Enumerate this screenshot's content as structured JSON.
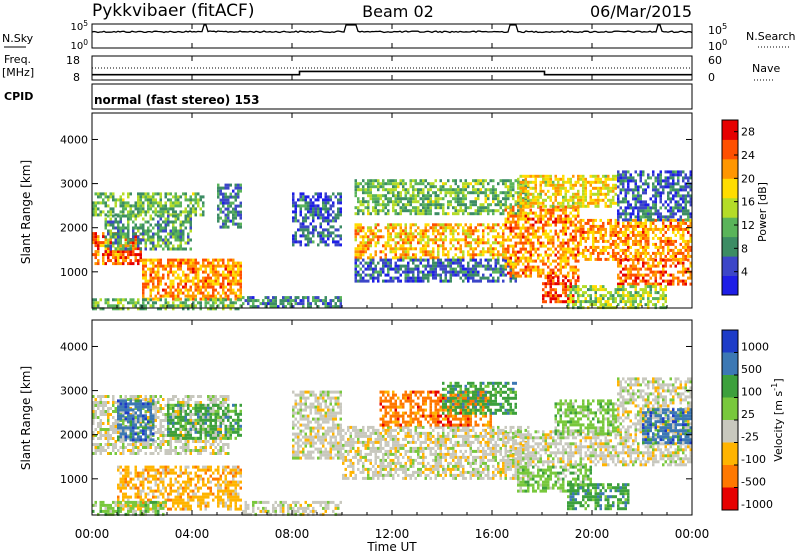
{
  "header": {
    "station": "Pykkvibaer (fitACF)",
    "beam": "Beam 02",
    "date": "06/Mar/2015"
  },
  "chart_data": {
    "type": "heatmap",
    "time_axis": {
      "label": "Time UT",
      "ticks": [
        "00:00",
        "04:00",
        "08:00",
        "12:00",
        "16:00",
        "20:00",
        "00:00"
      ],
      "range_hours": [
        0,
        24
      ]
    },
    "noise_panel": {
      "left_label": "N.Sky",
      "right_label": "N.Search",
      "left_ticks": [
        "10^5",
        "10^0"
      ],
      "right_ticks": [
        "10^5",
        "10^0"
      ]
    },
    "freq_panel": {
      "left_label_1": "Freq.",
      "left_label_2": "[MHz]",
      "right_label": "Nave",
      "left_ticks": [
        "18",
        "8"
      ],
      "right_ticks": [
        "60",
        "0"
      ],
      "freq_steps": [
        {
          "from_hr": 0,
          "to_hr": 8.3,
          "mhz": 10.2
        },
        {
          "from_hr": 8.3,
          "to_hr": 18.1,
          "mhz": 11.6
        },
        {
          "from_hr": 18.1,
          "to_hr": 24,
          "mhz": 10.2
        }
      ],
      "nave_level": 28
    },
    "cpid": {
      "label": "CPID",
      "value": "normal (fast stereo)  153"
    },
    "power_panel": {
      "ylabel": "Slant Range [km]",
      "yticks": [
        "4000",
        "3000",
        "2000",
        "1000"
      ],
      "ylim": [
        180,
        4600
      ],
      "colorbar_label": "Power [dB]",
      "colorbar_ticks": [
        "28",
        "24",
        "20",
        "16",
        "12",
        "8",
        "4"
      ],
      "colorbar_range": [
        0,
        30
      ],
      "colors": [
        "#1e1ee6",
        "#3c46c8",
        "#3c8c64",
        "#5ab45a",
        "#b4dc28",
        "#ffdc00",
        "#ff9600",
        "#ff5000",
        "#e60000"
      ],
      "bands": [
        {
          "start_hr": 0.0,
          "end_hr": 2.0,
          "range_lo": 1200,
          "range_hi": 1900,
          "level": 24
        },
        {
          "start_hr": 0.0,
          "end_hr": 4.5,
          "range_lo": 2300,
          "range_hi": 2800,
          "level": 12
        },
        {
          "start_hr": 0.5,
          "end_hr": 4.0,
          "range_lo": 1500,
          "range_hi": 2300,
          "level": 10
        },
        {
          "start_hr": 2.0,
          "end_hr": 6.0,
          "range_lo": 400,
          "range_hi": 1300,
          "level": 22
        },
        {
          "start_hr": 0.0,
          "end_hr": 6.0,
          "range_lo": 180,
          "range_hi": 400,
          "level": 12
        },
        {
          "start_hr": 5.0,
          "end_hr": 6.0,
          "range_lo": 2000,
          "range_hi": 3000,
          "level": 8
        },
        {
          "start_hr": 6.0,
          "end_hr": 10.0,
          "range_lo": 180,
          "range_hi": 450,
          "level": 8
        },
        {
          "start_hr": 8.0,
          "end_hr": 10.0,
          "range_lo": 1600,
          "range_hi": 2800,
          "level": 6
        },
        {
          "start_hr": 10.5,
          "end_hr": 17.5,
          "range_lo": 2300,
          "range_hi": 3100,
          "level": 12
        },
        {
          "start_hr": 10.5,
          "end_hr": 16.5,
          "range_lo": 1300,
          "range_hi": 2100,
          "level": 20
        },
        {
          "start_hr": 10.5,
          "end_hr": 17.0,
          "range_lo": 800,
          "range_hi": 1300,
          "level": 6
        },
        {
          "start_hr": 16.5,
          "end_hr": 19.5,
          "range_lo": 900,
          "range_hi": 2500,
          "level": 22
        },
        {
          "start_hr": 18.0,
          "end_hr": 19.5,
          "range_lo": 300,
          "range_hi": 900,
          "level": 26
        },
        {
          "start_hr": 17.0,
          "end_hr": 21.0,
          "range_lo": 2500,
          "range_hi": 3200,
          "level": 18
        },
        {
          "start_hr": 19.5,
          "end_hr": 24.0,
          "range_lo": 1300,
          "range_hi": 2200,
          "level": 22
        },
        {
          "start_hr": 21.0,
          "end_hr": 24.0,
          "range_lo": 700,
          "range_hi": 1300,
          "level": 24
        },
        {
          "start_hr": 19.0,
          "end_hr": 23.0,
          "range_lo": 200,
          "range_hi": 700,
          "level": 14
        },
        {
          "start_hr": 21.0,
          "end_hr": 24.0,
          "range_lo": 2200,
          "range_hi": 3300,
          "level": 6
        }
      ]
    },
    "velocity_panel": {
      "ylabel": "Slant Range [km]",
      "yticks": [
        "4000",
        "3000",
        "2000",
        "1000"
      ],
      "ylim": [
        180,
        4600
      ],
      "colorbar_label": "Velocity [m s^-1]",
      "colorbar_ticks": [
        "1000",
        "500",
        "100",
        "25",
        "-25",
        "-100",
        "-500",
        "-1000"
      ],
      "colors": [
        "#1e3cc8",
        "#3c78b4",
        "#3ca03c",
        "#78c83c",
        "#c8c8be",
        "#ffb400",
        "#ff7800",
        "#e60000"
      ],
      "bands": [
        {
          "start_hr": 0.0,
          "end_hr": 5.5,
          "range_lo": 1600,
          "range_hi": 2900,
          "cat": 4
        },
        {
          "start_hr": 1.0,
          "end_hr": 2.5,
          "range_lo": 1900,
          "range_hi": 2800,
          "cat": 1
        },
        {
          "start_hr": 3.0,
          "end_hr": 6.0,
          "range_lo": 1900,
          "range_hi": 2700,
          "cat": 2
        },
        {
          "start_hr": 1.0,
          "end_hr": 6.0,
          "range_lo": 300,
          "range_hi": 1300,
          "cat": 5
        },
        {
          "start_hr": 0.0,
          "end_hr": 3.0,
          "range_lo": 180,
          "range_hi": 500,
          "cat": 3
        },
        {
          "start_hr": 6.0,
          "end_hr": 10.0,
          "range_lo": 180,
          "range_hi": 500,
          "cat": 4
        },
        {
          "start_hr": 8.0,
          "end_hr": 10.0,
          "range_lo": 1500,
          "range_hi": 3000,
          "cat": 4
        },
        {
          "start_hr": 10.0,
          "end_hr": 17.5,
          "range_lo": 1000,
          "range_hi": 2200,
          "cat": 4
        },
        {
          "start_hr": 11.5,
          "end_hr": 16.0,
          "range_lo": 2200,
          "range_hi": 3000,
          "cat": 6
        },
        {
          "start_hr": 14.0,
          "end_hr": 17.0,
          "range_lo": 2500,
          "range_hi": 3200,
          "cat": 2
        },
        {
          "start_hr": 16.5,
          "end_hr": 24.0,
          "range_lo": 1300,
          "range_hi": 2100,
          "cat": 4
        },
        {
          "start_hr": 17.0,
          "end_hr": 20.0,
          "range_lo": 700,
          "range_hi": 1300,
          "cat": 3
        },
        {
          "start_hr": 19.0,
          "end_hr": 21.5,
          "range_lo": 300,
          "range_hi": 900,
          "cat": 2
        },
        {
          "start_hr": 21.0,
          "end_hr": 24.0,
          "range_lo": 2100,
          "range_hi": 3300,
          "cat": 4
        },
        {
          "start_hr": 22.0,
          "end_hr": 24.0,
          "range_lo": 1800,
          "range_hi": 2600,
          "cat": 1
        },
        {
          "start_hr": 18.5,
          "end_hr": 21.0,
          "range_lo": 2000,
          "range_hi": 2800,
          "cat": 3
        }
      ]
    }
  }
}
